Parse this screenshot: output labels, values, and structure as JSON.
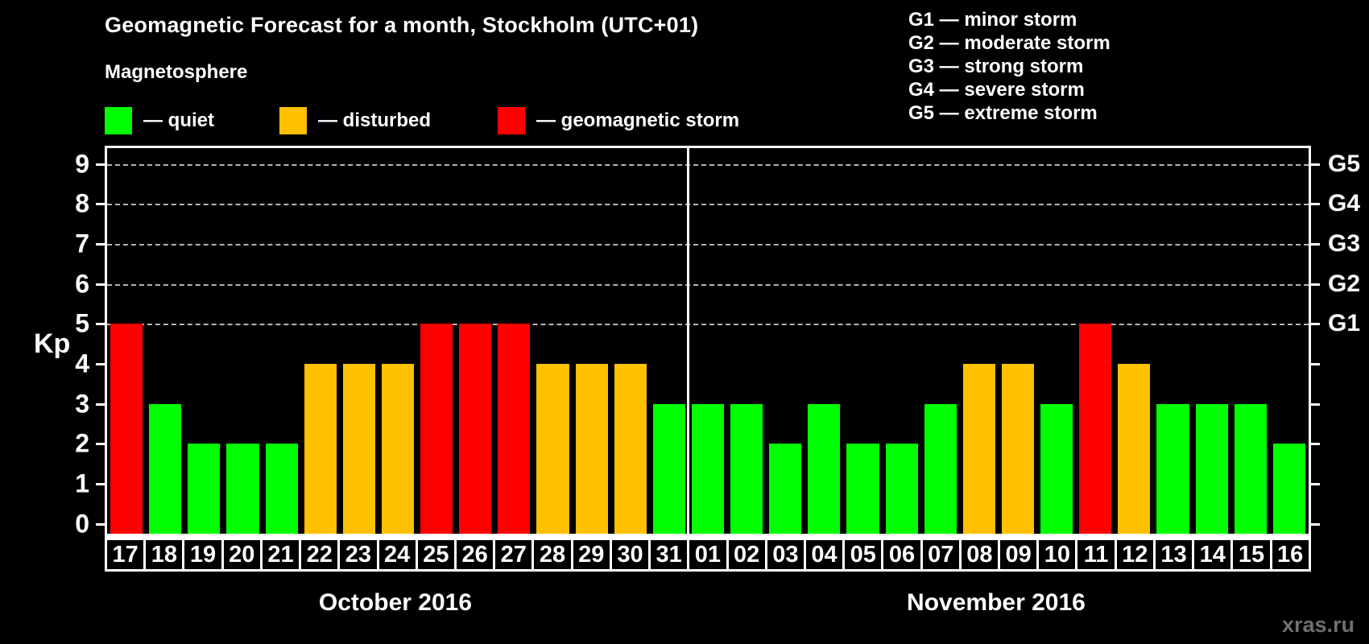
{
  "header": {
    "title": "Geomagnetic Forecast for a month, Stockholm (UTC+01)",
    "subtitle": "Magnetosphere"
  },
  "legend": {
    "items": [
      {
        "key": "quiet",
        "label": "— quiet"
      },
      {
        "key": "disturbed",
        "label": "— disturbed"
      },
      {
        "key": "storm",
        "label": "— geomagnetic storm"
      }
    ]
  },
  "g_legend": {
    "lines": [
      "G1 — minor storm",
      "G2 — moderate storm",
      "G3 — strong storm",
      "G4 — severe storm",
      "G5 — extreme storm"
    ]
  },
  "watermark": "xras.ru",
  "chart_data": {
    "type": "bar",
    "title": "Geomagnetic Forecast for a month, Stockholm (UTC+01)",
    "ylabel": "Kp",
    "ylim": [
      0,
      9
    ],
    "yticks": [
      0,
      1,
      2,
      3,
      4,
      5,
      6,
      7,
      8,
      9
    ],
    "gridlines_at": [
      5,
      6,
      7,
      8,
      9
    ],
    "grid_style": "dashed",
    "right_axis_levels": [
      {
        "label": "G1",
        "kp": 5
      },
      {
        "label": "G2",
        "kp": 6
      },
      {
        "label": "G3",
        "kp": 7
      },
      {
        "label": "G4",
        "kp": 8
      },
      {
        "label": "G5",
        "kp": 9
      }
    ],
    "status_colors": {
      "quiet": "#00ff00",
      "disturbed": "#ffc000",
      "storm": "#ff0000"
    },
    "groups": [
      {
        "month": "October 2016",
        "bars": [
          {
            "day": "17",
            "kp": 5,
            "status": "storm"
          },
          {
            "day": "18",
            "kp": 3,
            "status": "quiet"
          },
          {
            "day": "19",
            "kp": 2,
            "status": "quiet"
          },
          {
            "day": "20",
            "kp": 2,
            "status": "quiet"
          },
          {
            "day": "21",
            "kp": 2,
            "status": "quiet"
          },
          {
            "day": "22",
            "kp": 4,
            "status": "disturbed"
          },
          {
            "day": "23",
            "kp": 4,
            "status": "disturbed"
          },
          {
            "day": "24",
            "kp": 4,
            "status": "disturbed"
          },
          {
            "day": "25",
            "kp": 5,
            "status": "storm"
          },
          {
            "day": "26",
            "kp": 5,
            "status": "storm"
          },
          {
            "day": "27",
            "kp": 5,
            "status": "storm"
          },
          {
            "day": "28",
            "kp": 4,
            "status": "disturbed"
          },
          {
            "day": "29",
            "kp": 4,
            "status": "disturbed"
          },
          {
            "day": "30",
            "kp": 4,
            "status": "disturbed"
          },
          {
            "day": "31",
            "kp": 3,
            "status": "quiet"
          }
        ]
      },
      {
        "month": "November 2016",
        "bars": [
          {
            "day": "01",
            "kp": 3,
            "status": "quiet"
          },
          {
            "day": "02",
            "kp": 3,
            "status": "quiet"
          },
          {
            "day": "03",
            "kp": 2,
            "status": "quiet"
          },
          {
            "day": "04",
            "kp": 3,
            "status": "quiet"
          },
          {
            "day": "05",
            "kp": 2,
            "status": "quiet"
          },
          {
            "day": "06",
            "kp": 2,
            "status": "quiet"
          },
          {
            "day": "07",
            "kp": 3,
            "status": "quiet"
          },
          {
            "day": "08",
            "kp": 4,
            "status": "disturbed"
          },
          {
            "day": "09",
            "kp": 4,
            "status": "disturbed"
          },
          {
            "day": "10",
            "kp": 3,
            "status": "quiet"
          },
          {
            "day": "11",
            "kp": 5,
            "status": "storm"
          },
          {
            "day": "12",
            "kp": 4,
            "status": "disturbed"
          },
          {
            "day": "13",
            "kp": 3,
            "status": "quiet"
          },
          {
            "day": "14",
            "kp": 3,
            "status": "quiet"
          },
          {
            "day": "15",
            "kp": 3,
            "status": "quiet"
          },
          {
            "day": "16",
            "kp": 2,
            "status": "quiet"
          }
        ]
      }
    ]
  }
}
